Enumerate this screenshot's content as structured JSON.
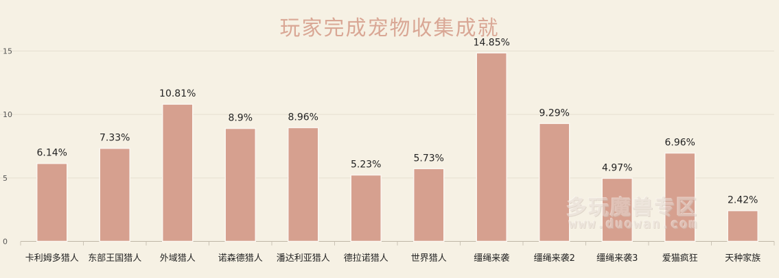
{
  "chart_data": {
    "type": "bar",
    "title": "玩家完成宠物收集成就",
    "categories": [
      "卡利姆多猎人",
      "东部王国猎人",
      "外域猎人",
      "诺森德猎人",
      "潘达利亚猎人",
      "德拉诺猎人",
      "世界猎人",
      "缰绳来袭",
      "缰绳来袭2",
      "缰绳来袭3",
      "爱猫疯狂",
      "天种家族"
    ],
    "values": [
      6.14,
      7.33,
      10.81,
      8.9,
      8.96,
      5.23,
      5.73,
      14.85,
      9.29,
      4.97,
      6.96,
      2.42
    ],
    "data_labels": [
      "6.14%",
      "7.33%",
      "10.81%",
      "8.9%",
      "8.96%",
      "5.23%",
      "5.73%",
      "14.85%",
      "9.29%",
      "4.97%",
      "6.96%",
      "2.42%"
    ],
    "yticks": [
      "0",
      "5",
      "10",
      "15"
    ],
    "ylim": [
      0,
      15
    ],
    "xlabel": "",
    "ylabel": "",
    "grid": true,
    "legend": "none",
    "colors": {
      "bar": "#d6a08f",
      "bar_edge": "#fbf6f0",
      "background": "#f6f1e4",
      "grid": "#e5dfd0",
      "title": "#d9a795",
      "text": "#222222",
      "tick_text": "#555555"
    }
  },
  "watermark": {
    "main": "多玩魔兽专区",
    "sub": "www.duowan.com"
  }
}
